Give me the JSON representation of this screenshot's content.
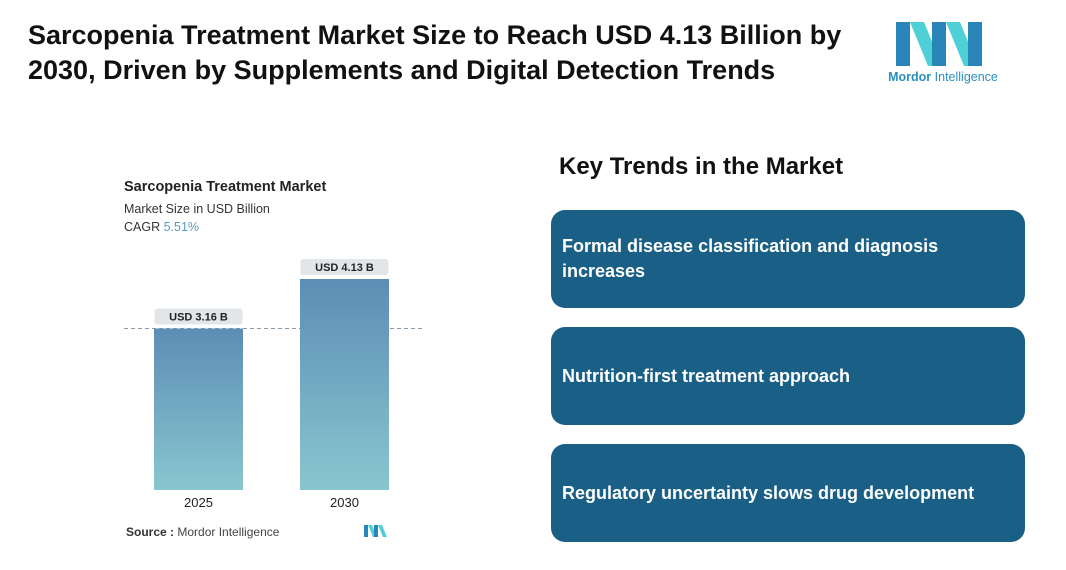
{
  "headline": "Sarcopenia Treatment Market Size to Reach USD 4.13 Billion by 2030, Driven by Supplements and Digital Detection Trends",
  "brand": {
    "name_bold": "Mordor",
    "name_light": " Intelligence",
    "logo_icon": "mordor-intelligence-logo-icon",
    "colors": {
      "dark": "#2a86b8",
      "light": "#4fd0d6"
    }
  },
  "chart_data": {
    "type": "bar",
    "title": "Sarcopenia Treatment Market",
    "subtitle": "Market Size in USD Billion",
    "cagr_label": "CAGR ",
    "cagr_value": "5.51%",
    "categories": [
      "2025",
      "2030"
    ],
    "values": [
      3.16,
      4.13
    ],
    "data_labels": [
      "USD 3.16 B",
      "USD 4.13 B"
    ],
    "ylim": [
      0,
      4.5
    ],
    "reference_line": 3.16,
    "grid": false,
    "bar_gradient": [
      "#5d8db5",
      "#88c6cf"
    ]
  },
  "source": {
    "label": "Source :",
    "text": "Mordor Intelligence"
  },
  "trends": {
    "title": "Key Trends in the Market",
    "items": [
      "Formal disease classification and diagnosis increases",
      "Nutrition-first treatment approach",
      "Regulatory uncertainty slows drug development"
    ]
  }
}
